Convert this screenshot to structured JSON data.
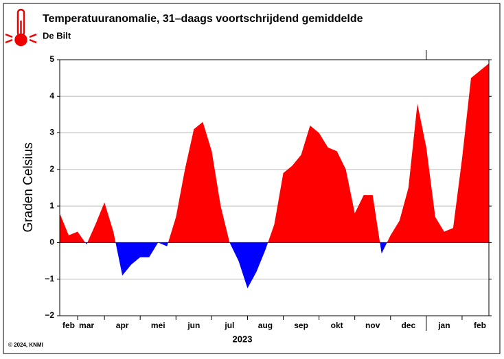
{
  "chart_data": {
    "type": "area",
    "title": "Temperatuuranomalie, 31–daags voortschrijdend gemiddelde",
    "subtitle": "De Bilt",
    "y_label": "Graden Celsius",
    "x_label": "2023",
    "footnote": "© 2024, KNMI",
    "categories": [
      null,
      "feb",
      null,
      "mar",
      null,
      null,
      null,
      "apr",
      null,
      null,
      null,
      "mei",
      null,
      null,
      null,
      "jun",
      null,
      null,
      null,
      "jul",
      null,
      null,
      null,
      "aug",
      null,
      null,
      null,
      "sep",
      null,
      null,
      null,
      "okt",
      null,
      null,
      null,
      "nov",
      null,
      null,
      null,
      "dec",
      null,
      null,
      null,
      "jan",
      null,
      null,
      null,
      "feb",
      null
    ],
    "series": [
      {
        "name": "Temperatuuranomalie",
        "color_above": "#ff0000",
        "color_below": "#0000ff",
        "values": [
          0.8,
          0.2,
          0.3,
          -0.05,
          0.5,
          1.1,
          0.3,
          -0.9,
          -0.6,
          -0.4,
          -0.4,
          0.0,
          -0.1,
          0.7,
          2.0,
          3.1,
          3.3,
          2.5,
          1.0,
          0.0,
          -0.5,
          -1.25,
          -0.8,
          -0.2,
          0.5,
          1.9,
          2.1,
          2.4,
          3.2,
          3.0,
          2.6,
          2.5,
          2.0,
          0.8,
          1.3,
          1.3,
          -0.3,
          0.2,
          0.6,
          1.5,
          3.8,
          2.6,
          0.7,
          0.3,
          0.4,
          2.3,
          4.5,
          4.7,
          4.9
        ]
      }
    ],
    "ylim": [
      -2,
      5
    ],
    "yticks": [
      {
        "value": -2,
        "label": "−2"
      },
      {
        "value": -1,
        "label": "−1"
      },
      0,
      1,
      2,
      3,
      4,
      5
    ],
    "grid": true
  }
}
